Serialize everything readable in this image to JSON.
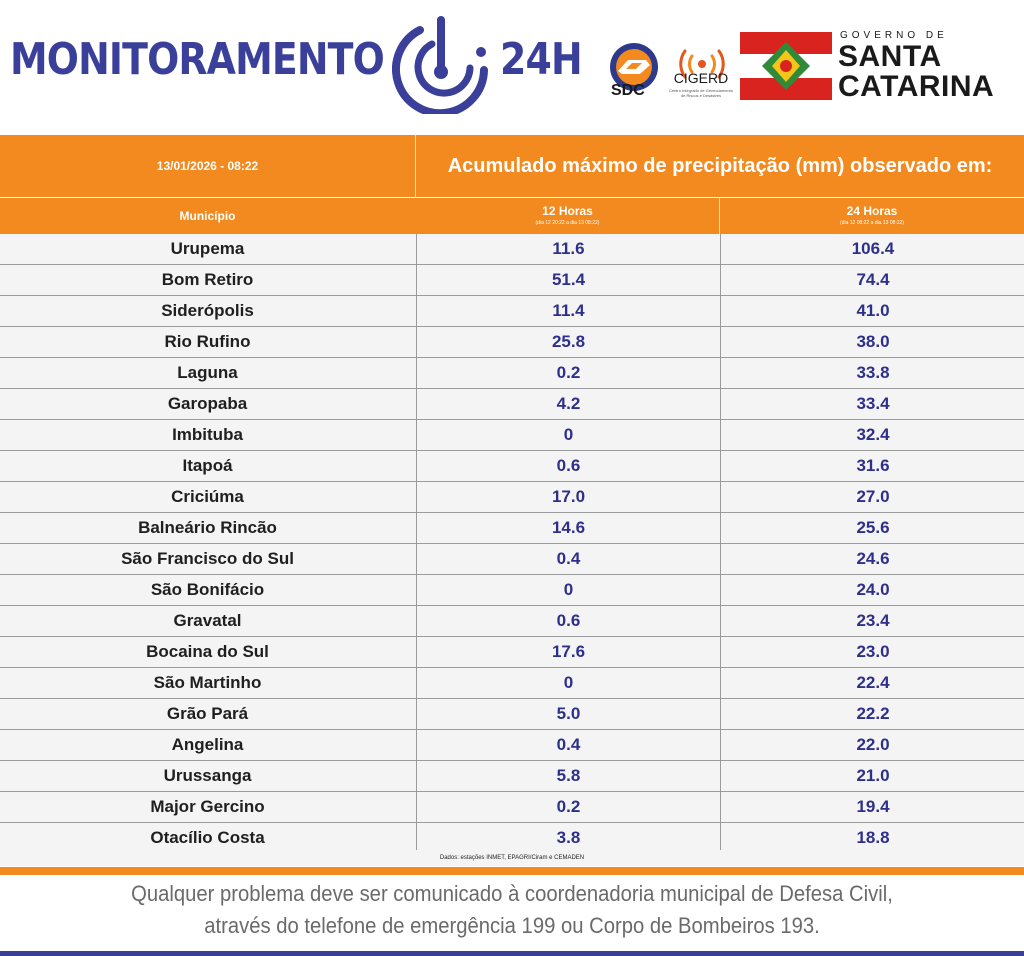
{
  "header": {
    "brand_word": "MONITORAMENTO",
    "brand_suffix": "24H",
    "sdc_label": "SDC",
    "cigerd_label": "CIGERD",
    "cigerd_sub": "Centro Integrado de Gerenciamento de Riscos e Desastres",
    "gov_small": "GOVERNO DE",
    "gov_line1": "SANTA",
    "gov_line2": "CATARINA",
    "brand_color": "#3a3f9a",
    "accent_color": "#f28a1f"
  },
  "table": {
    "datetime": "13/01/2026 - 08:22",
    "title": "Acumulado máximo de precipitação (mm) observado em:",
    "col_municipio": "Município",
    "col_12": "12 Horas",
    "col_12_sub": "(dia 12 20:22 a dia 13 08:22)",
    "col_24": "24 Horas",
    "col_24_sub": "(dia 12 08:22 a dia 13 08:22)",
    "rows": [
      {
        "municipio": "Urupema",
        "h12": "11.6",
        "h24": "106.4"
      },
      {
        "municipio": "Bom Retiro",
        "h12": "51.4",
        "h24": "74.4"
      },
      {
        "municipio": "Siderópolis",
        "h12": "11.4",
        "h24": "41.0"
      },
      {
        "municipio": "Rio Rufino",
        "h12": "25.8",
        "h24": "38.0"
      },
      {
        "municipio": "Laguna",
        "h12": "0.2",
        "h24": "33.8"
      },
      {
        "municipio": "Garopaba",
        "h12": "4.2",
        "h24": "33.4"
      },
      {
        "municipio": "Imbituba",
        "h12": "0",
        "h24": "32.4"
      },
      {
        "municipio": "Itapoá",
        "h12": "0.6",
        "h24": "31.6"
      },
      {
        "municipio": "Criciúma",
        "h12": "17.0",
        "h24": "27.0"
      },
      {
        "municipio": "Balneário Rincão",
        "h12": "14.6",
        "h24": "25.6"
      },
      {
        "municipio": "São Francisco do Sul",
        "h12": "0.4",
        "h24": "24.6"
      },
      {
        "municipio": "São Bonifácio",
        "h12": "0",
        "h24": "24.0"
      },
      {
        "municipio": "Gravatal",
        "h12": "0.6",
        "h24": "23.4"
      },
      {
        "municipio": "Bocaina do Sul",
        "h12": "17.6",
        "h24": "23.0"
      },
      {
        "municipio": "São Martinho",
        "h12": "0",
        "h24": "22.4"
      },
      {
        "municipio": "Grão Pará",
        "h12": "5.0",
        "h24": "22.2"
      },
      {
        "municipio": "Angelina",
        "h12": "0.4",
        "h24": "22.0"
      },
      {
        "municipio": "Urussanga",
        "h12": "5.8",
        "h24": "21.0"
      },
      {
        "municipio": "Major Gercino",
        "h12": "0.2",
        "h24": "19.4"
      },
      {
        "municipio": "Otacílio Costa",
        "h12": "3.8",
        "h24": "18.8"
      }
    ],
    "source": "Dados: estações INMET, EPAGRI/Ciram e CEMADEN"
  },
  "footer": {
    "line1": "Qualquer problema deve ser comunicado à coordenadoria municipal de Defesa Civil,",
    "line2": "através do telefone de emergência 199 ou Corpo de Bombeiros 193."
  }
}
